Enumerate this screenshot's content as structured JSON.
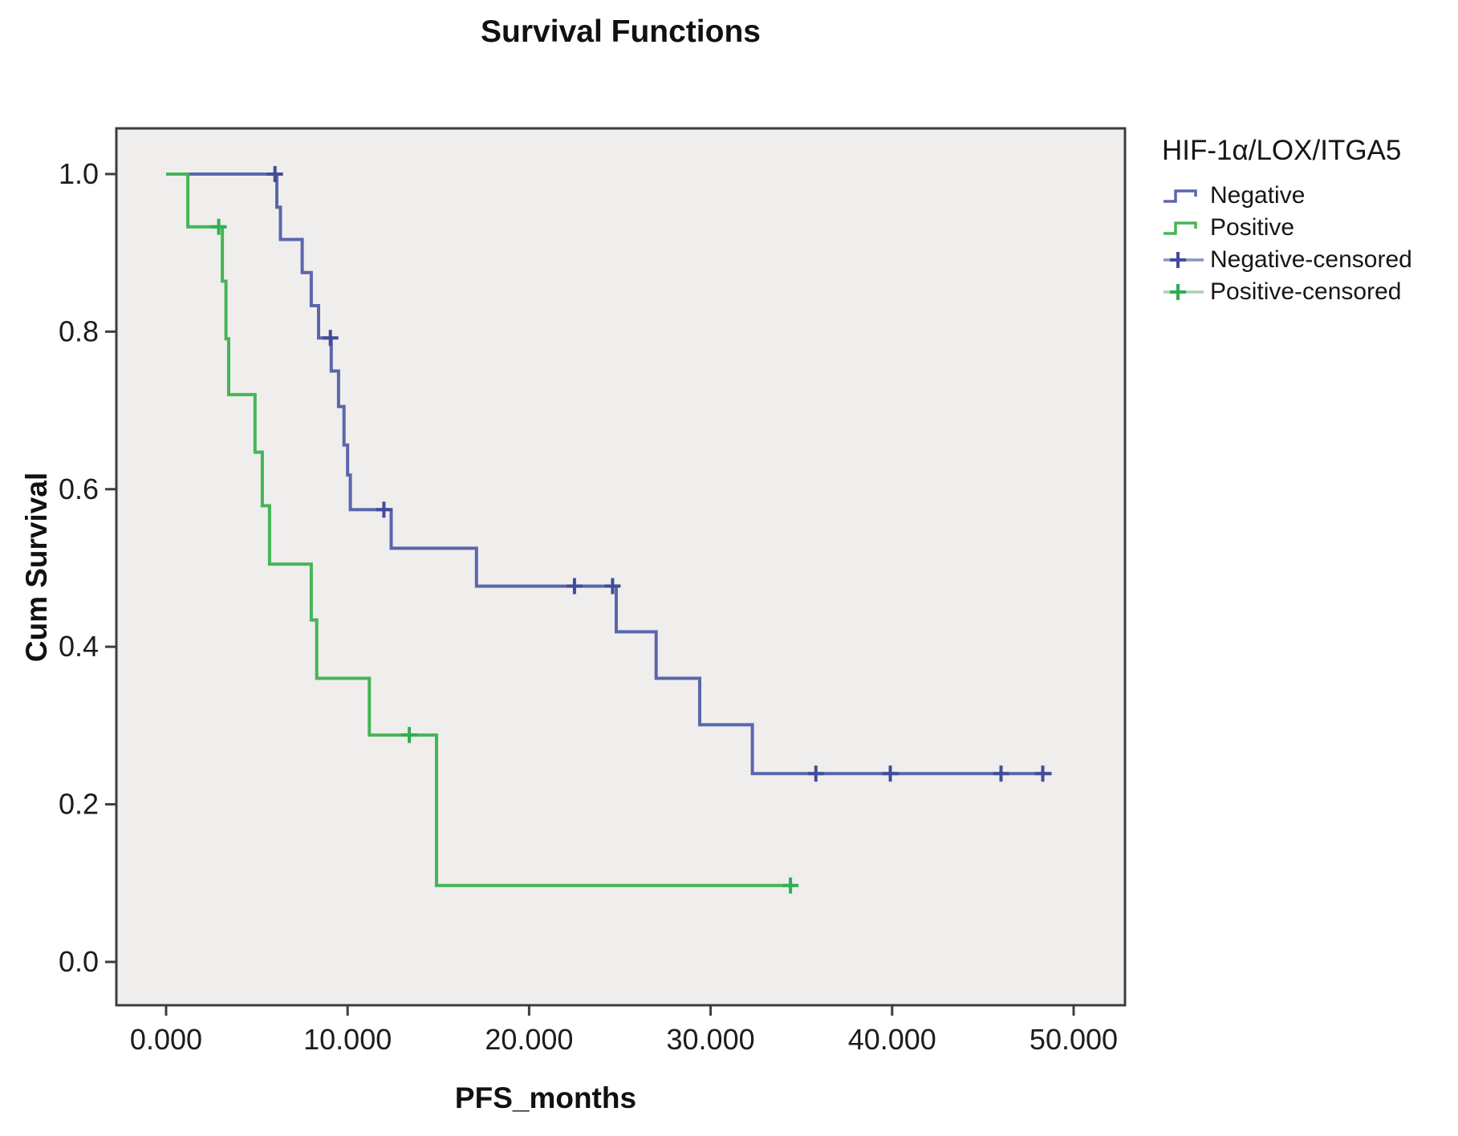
{
  "title": "Survival Functions",
  "axes": {
    "x": {
      "label": "PFS_months",
      "ticks": [
        {
          "v": 0,
          "label": "0.000"
        },
        {
          "v": 10,
          "label": "10.000"
        },
        {
          "v": 20,
          "label": "20.000"
        },
        {
          "v": 30,
          "label": "30.000"
        },
        {
          "v": 40,
          "label": "40.000"
        },
        {
          "v": 50,
          "label": "50.000"
        }
      ]
    },
    "y": {
      "label": "Cum Survival",
      "ticks": [
        {
          "v": 0.0,
          "label": "0.0"
        },
        {
          "v": 0.2,
          "label": "0.2"
        },
        {
          "v": 0.4,
          "label": "0.4"
        },
        {
          "v": 0.6,
          "label": "0.6"
        },
        {
          "v": 0.8,
          "label": "0.8"
        },
        {
          "v": 1.0,
          "label": "1.0"
        }
      ]
    }
  },
  "legend": {
    "title": "HIF-1α/LOX/ITGA5",
    "items": [
      {
        "label": "Negative",
        "type": "step",
        "color_key": "negative"
      },
      {
        "label": "Positive",
        "type": "step",
        "color_key": "positive"
      },
      {
        "label": "Negative-censored",
        "type": "censor",
        "color_key": "negative"
      },
      {
        "label": "Positive-censored",
        "type": "censor",
        "color_key": "positive"
      }
    ]
  },
  "colors": {
    "negative": "#5a66ad",
    "negative_censor": "#414c9c",
    "negative_muted": "#8a93bf",
    "positive": "#45b557",
    "positive_censor": "#2fae54",
    "positive_muted": "#a4d4ad",
    "plot_bg": "#efeeec",
    "frame": "#3d3d3d",
    "tick_text": "#1c1c1c"
  },
  "chart_data": {
    "type": "line",
    "subtype": "kaplan-meier-step",
    "title": "Survival Functions",
    "xlabel": "PFS_months",
    "ylabel": "Cum Survival",
    "xlim": [
      -2.74,
      52.83
    ],
    "ylim": [
      -0.055,
      1.058
    ],
    "grid": false,
    "legend_position": "right",
    "series": [
      {
        "name": "Negative",
        "color_key": "negative",
        "points": [
          [
            0,
            1.0
          ],
          [
            6.1,
            0.958
          ],
          [
            6.3,
            0.917
          ],
          [
            7.5,
            0.875
          ],
          [
            8.0,
            0.833
          ],
          [
            8.4,
            0.792
          ],
          [
            9.1,
            0.75
          ],
          [
            9.5,
            0.705
          ],
          [
            9.8,
            0.656
          ],
          [
            10.0,
            0.618
          ],
          [
            10.15,
            0.574
          ],
          [
            12.4,
            0.525
          ],
          [
            17.1,
            0.477
          ],
          [
            24.8,
            0.419
          ],
          [
            27.0,
            0.36
          ],
          [
            29.4,
            0.301
          ],
          [
            32.3,
            0.239
          ],
          [
            48.8,
            0.239
          ]
        ],
        "censored": [
          [
            6.0,
            1.0
          ],
          [
            9.05,
            0.792
          ],
          [
            12.0,
            0.574
          ],
          [
            22.5,
            0.477
          ],
          [
            24.6,
            0.477
          ],
          [
            35.8,
            0.239
          ],
          [
            39.9,
            0.239
          ],
          [
            46.0,
            0.239
          ],
          [
            48.3,
            0.239
          ]
        ]
      },
      {
        "name": "Positive",
        "color_key": "positive",
        "points": [
          [
            0,
            1.0
          ],
          [
            1.2,
            0.933
          ],
          [
            3.1,
            0.864
          ],
          [
            3.3,
            0.791
          ],
          [
            3.45,
            0.72
          ],
          [
            4.9,
            0.647
          ],
          [
            5.3,
            0.579
          ],
          [
            5.7,
            0.505
          ],
          [
            8.0,
            0.434
          ],
          [
            8.3,
            0.36
          ],
          [
            11.2,
            0.288
          ],
          [
            14.9,
            0.097
          ],
          [
            34.6,
            0.097
          ]
        ],
        "censored": [
          [
            2.9,
            0.933
          ],
          [
            13.4,
            0.288
          ],
          [
            34.4,
            0.097
          ]
        ]
      }
    ]
  }
}
